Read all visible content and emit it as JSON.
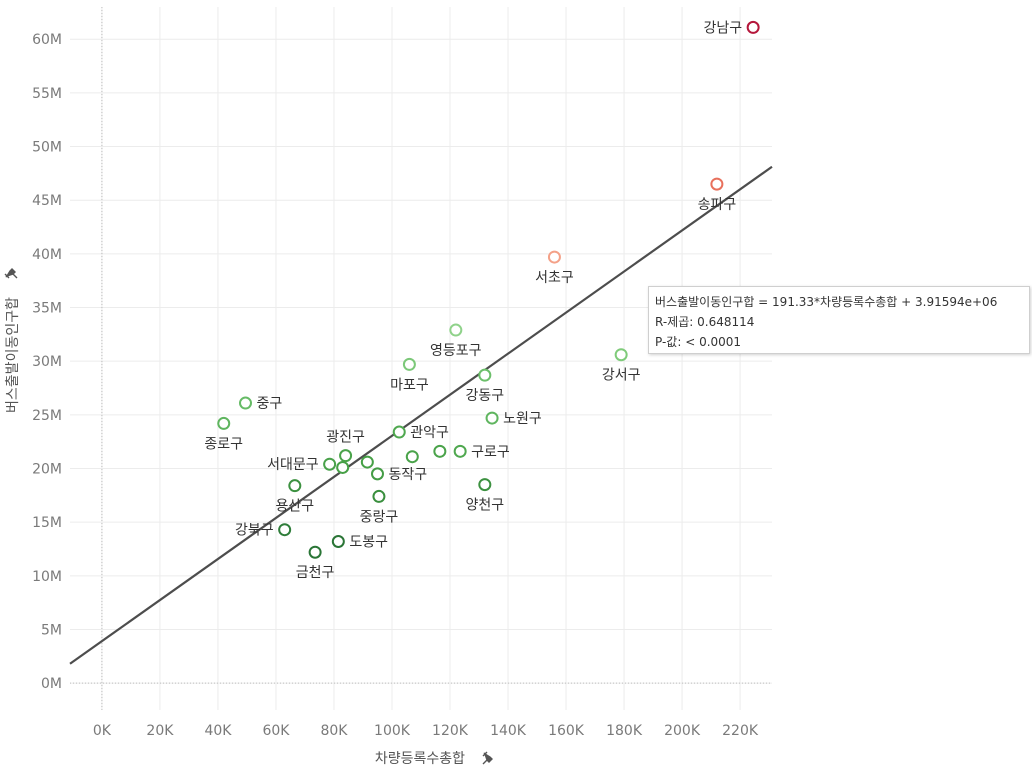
{
  "chart_data": {
    "type": "scatter",
    "xlabel": "차량등록수총합",
    "ylabel": "버스출발이동인구합",
    "xlim": [
      -11000,
      231000
    ],
    "ylim": [
      -2500000,
      63000000
    ],
    "x_ticks": [
      {
        "value": 0,
        "label": "0K"
      },
      {
        "value": 20000,
        "label": "20K"
      },
      {
        "value": 40000,
        "label": "40K"
      },
      {
        "value": 60000,
        "label": "60K"
      },
      {
        "value": 80000,
        "label": "80K"
      },
      {
        "value": 100000,
        "label": "100K"
      },
      {
        "value": 120000,
        "label": "120K"
      },
      {
        "value": 140000,
        "label": "140K"
      },
      {
        "value": 160000,
        "label": "160K"
      },
      {
        "value": 180000,
        "label": "180K"
      },
      {
        "value": 200000,
        "label": "200K"
      },
      {
        "value": 220000,
        "label": "220K"
      }
    ],
    "y_ticks": [
      {
        "value": 0,
        "label": "0M"
      },
      {
        "value": 5000000,
        "label": "5M"
      },
      {
        "value": 10000000,
        "label": "10M"
      },
      {
        "value": 15000000,
        "label": "15M"
      },
      {
        "value": 20000000,
        "label": "20M"
      },
      {
        "value": 25000000,
        "label": "25M"
      },
      {
        "value": 30000000,
        "label": "30M"
      },
      {
        "value": 35000000,
        "label": "35M"
      },
      {
        "value": 40000000,
        "label": "40M"
      },
      {
        "value": 45000000,
        "label": "45M"
      },
      {
        "value": 50000000,
        "label": "50M"
      },
      {
        "value": 55000000,
        "label": "55M"
      },
      {
        "value": 60000000,
        "label": "60M"
      }
    ],
    "grid": true,
    "trend_line": {
      "slope": 191.33,
      "intercept": 3915940
    },
    "points": [
      {
        "name": "강남구",
        "x": 224500,
        "y": 61100000,
        "color": "#b5173b",
        "label_pos": "left"
      },
      {
        "name": "송파구",
        "x": 212000,
        "y": 46500000,
        "color": "#e8705c",
        "label_pos": "below"
      },
      {
        "name": "서초구",
        "x": 156000,
        "y": 39700000,
        "color": "#f4a188",
        "label_pos": "below"
      },
      {
        "name": "강서구",
        "x": 179000,
        "y": 30600000,
        "color": "#7fcb7a",
        "label_pos": "below"
      },
      {
        "name": "영등포구",
        "x": 122000,
        "y": 32900000,
        "color": "#8fd28a",
        "label_pos": "below"
      },
      {
        "name": "마포구",
        "x": 106000,
        "y": 29700000,
        "color": "#7cc879",
        "label_pos": "below"
      },
      {
        "name": "강동구",
        "x": 132000,
        "y": 28700000,
        "color": "#6cbf6a",
        "label_pos": "below"
      },
      {
        "name": "중구",
        "x": 49500,
        "y": 26100000,
        "color": "#66bb66",
        "label_pos": "right"
      },
      {
        "name": "노원구",
        "x": 134500,
        "y": 24700000,
        "color": "#5fb55f",
        "label_pos": "right"
      },
      {
        "name": "종로구",
        "x": 42000,
        "y": 24200000,
        "color": "#5fb55f",
        "label_pos": "below"
      },
      {
        "name": "관악구",
        "x": 102500,
        "y": 23400000,
        "color": "#4fa84f",
        "label_pos": "right"
      },
      {
        "name": "광진구",
        "x": 84000,
        "y": 21200000,
        "color": "#4aa34a",
        "label_pos": "above"
      },
      {
        "name": "구로구",
        "x": 123500,
        "y": 21600000,
        "color": "#4fa84f",
        "label_pos": "right"
      },
      {
        "name": "서대문구",
        "x": 78500,
        "y": 20400000,
        "color": "#49a14a",
        "label_pos": "left"
      },
      {
        "name": "동작구",
        "x": 95000,
        "y": 19500000,
        "color": "#449c45",
        "label_pos": "right"
      },
      {
        "name": "용산구",
        "x": 66500,
        "y": 18400000,
        "color": "#3c9140",
        "label_pos": "below"
      },
      {
        "name": "양천구",
        "x": 132000,
        "y": 18500000,
        "color": "#3c9140",
        "label_pos": "below"
      },
      {
        "name": "중랑구",
        "x": 95500,
        "y": 17400000,
        "color": "#3a8f3e",
        "label_pos": "below"
      },
      {
        "name": "강북구",
        "x": 63000,
        "y": 14300000,
        "color": "#2f7d3a",
        "label_pos": "left"
      },
      {
        "name": "도봉구",
        "x": 81500,
        "y": 13200000,
        "color": "#2a7536",
        "label_pos": "right"
      },
      {
        "name": "금천구",
        "x": 73500,
        "y": 12200000,
        "color": "#2a7536",
        "label_pos": "below"
      }
    ],
    "extra_points": [
      {
        "x": 107000,
        "y": 21100000,
        "color": "#4aa34a"
      },
      {
        "x": 116500,
        "y": 21600000,
        "color": "#4aa34a"
      },
      {
        "x": 91500,
        "y": 20600000,
        "color": "#46a046"
      },
      {
        "x": 83000,
        "y": 20100000,
        "color": "#46a046"
      }
    ]
  },
  "tooltip": {
    "line1": "버스출발이동인구합 = 191.33*차량등록수총합 + 3.91594e+06",
    "line2": "R-제곱: 0.648114",
    "line3": "P-값: < 0.0001"
  },
  "axis_pin_icons": {
    "x": "pin-icon",
    "y": "pin-icon"
  }
}
